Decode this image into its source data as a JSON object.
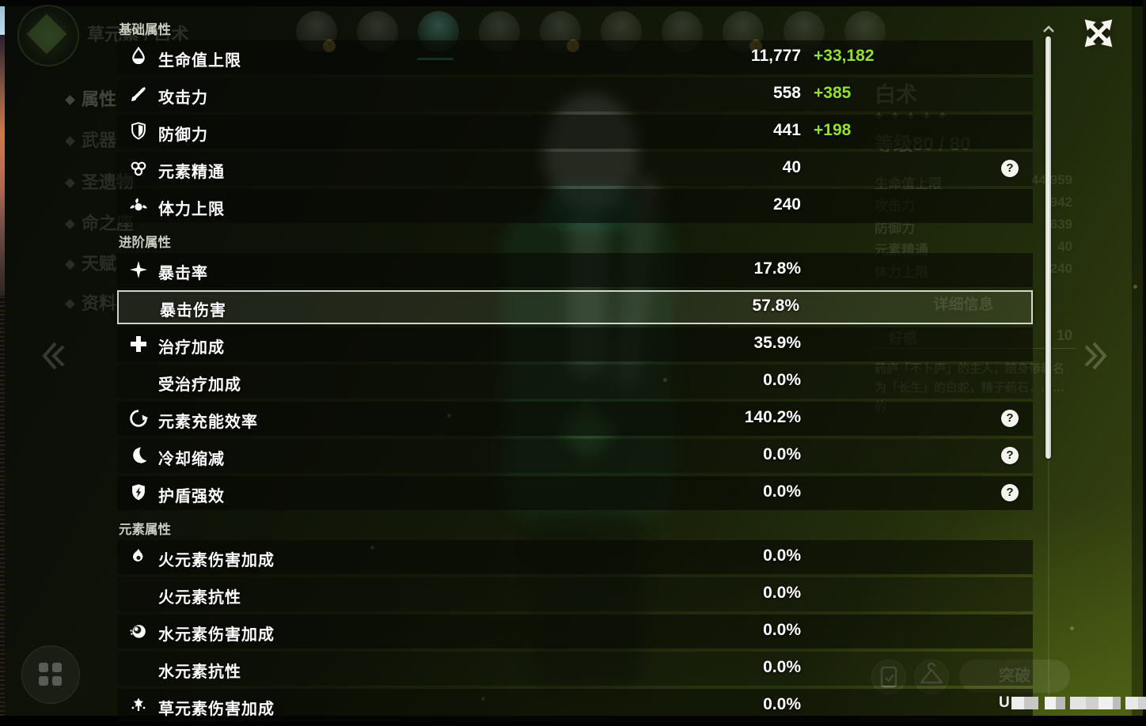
{
  "window": {
    "close": "close"
  },
  "panel": {
    "sections": [
      {
        "title": "基础属性",
        "rows": [
          {
            "icon": "hp",
            "label": "生命值上限",
            "value": "11,777",
            "bonus": "+33,182"
          },
          {
            "icon": "atk",
            "label": "攻击力",
            "value": "558",
            "bonus": "+385"
          },
          {
            "icon": "def",
            "label": "防御力",
            "value": "441",
            "bonus": "+198"
          },
          {
            "icon": "em",
            "label": "元素精通",
            "value": "40",
            "help": true
          },
          {
            "icon": "stamina",
            "label": "体力上限",
            "value": "240"
          }
        ]
      },
      {
        "title": "进阶属性",
        "rows": [
          {
            "icon": "crit",
            "label": "暴击率",
            "value": "17.8%"
          },
          {
            "icon": null,
            "label": "暴击伤害",
            "value": "57.8%",
            "selected": true
          },
          {
            "icon": "heal",
            "label": "治疗加成",
            "value": "35.9%"
          },
          {
            "icon": null,
            "label": "受治疗加成",
            "value": "0.0%"
          },
          {
            "icon": "er",
            "label": "元素充能效率",
            "value": "140.2%",
            "help": true
          },
          {
            "icon": "cd",
            "label": "冷却缩减",
            "value": "0.0%",
            "help": true
          },
          {
            "icon": "shieldstr",
            "label": "护盾强效",
            "value": "0.0%",
            "help": true
          }
        ]
      },
      {
        "title": "元素属性",
        "rows": [
          {
            "icon": "pyro",
            "label": "火元素伤害加成",
            "value": "0.0%"
          },
          {
            "icon": null,
            "label": "火元素抗性",
            "value": "0.0%"
          },
          {
            "icon": "hydro",
            "label": "水元素伤害加成",
            "value": "0.0%"
          },
          {
            "icon": null,
            "label": "水元素抗性",
            "value": "0.0%"
          },
          {
            "icon": "dendro",
            "label": "草元素伤害加成",
            "value": "0.0%"
          }
        ]
      }
    ],
    "help_glyph": "?",
    "accent_green": "#92e22b"
  },
  "background": {
    "element_label": "草元素 / 白术",
    "sidebar": [
      "属性",
      "武器",
      "圣遗物",
      "命之座",
      "天赋",
      "资料"
    ],
    "character": {
      "name": "白术",
      "stars": "✦✦✦✦✦",
      "level_label": "等级80 / 80",
      "stats": [
        {
          "label": "生命值上限",
          "value": "44,959"
        },
        {
          "label": "攻击力",
          "value": "942"
        },
        {
          "label": "防御力",
          "value": "639"
        },
        {
          "label": "元素精通",
          "value": "40"
        },
        {
          "label": "体力上限",
          "value": "240"
        }
      ],
      "detail_header": "详细信息",
      "friendship_label": "好感",
      "friendship_value": "10",
      "description": "药庐「不卜庐」的主人，随身带着名为「长生」的白蛇，精于药石，……的"
    },
    "ascend_label": "突破"
  }
}
